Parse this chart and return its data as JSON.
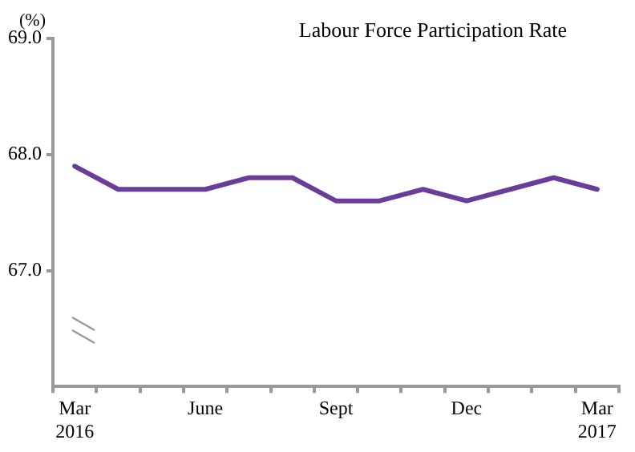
{
  "chart_data": {
    "type": "line",
    "title": "Labour Force Participation Rate",
    "ylabel": "(%)",
    "categories": [
      "Mar 2016",
      null,
      null,
      "June",
      null,
      null,
      "Sept",
      null,
      null,
      "Dec",
      null,
      null,
      "Mar 2017"
    ],
    "series": [
      {
        "color": "#6a3d9a",
        "values": [
          67.9,
          67.7,
          67.7,
          67.7,
          67.8,
          67.8,
          67.6,
          67.6,
          67.7,
          67.6,
          67.7,
          67.8,
          67.7
        ]
      }
    ],
    "ylim": [
      66,
      69
    ],
    "yticks": [
      {
        "value": 67,
        "label": "67.0"
      },
      {
        "value": 68,
        "label": "68.0"
      },
      {
        "value": 69,
        "label": "69.0"
      }
    ],
    "grid": false,
    "legend": false,
    "marker": "none",
    "line_style": "solid"
  }
}
